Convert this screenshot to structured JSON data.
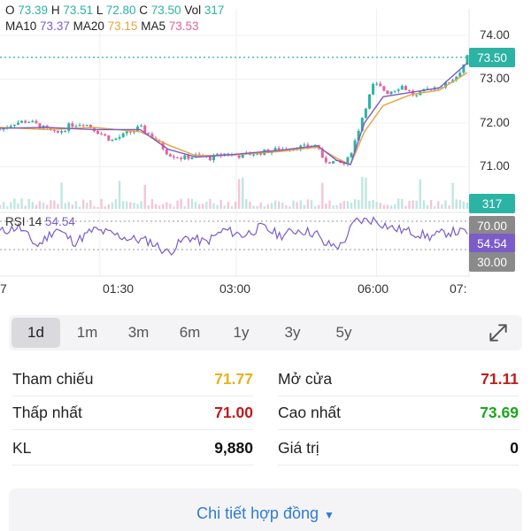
{
  "ohlc": {
    "o_label": "O",
    "o_value": "73.39",
    "h_label": "H",
    "h_value": "73.51",
    "l_label": "L",
    "l_value": "72.80",
    "c_label": "C",
    "c_value": "73.50",
    "vol_label": "Vol",
    "vol_value": "317"
  },
  "ma": {
    "ma10_label": "MA10",
    "ma10_value": "73.37",
    "ma20_label": "MA20",
    "ma20_value": "73.15",
    "ma5_label": "MA5",
    "ma5_value": "73.53"
  },
  "price_axis": [
    "74.00",
    "73.00",
    "72.00",
    "71.00",
    "70.00"
  ],
  "last_price_tag": "73.50",
  "volume_tag": "317",
  "rsi": {
    "label": "RSI 14",
    "value": "54.54",
    "upper": "70.00",
    "lower": "30.00"
  },
  "time_axis": [
    "7",
    "01:30",
    "03:00",
    "06:00",
    "07:"
  ],
  "colors": {
    "teal": "#2bb3a3",
    "purple": "#7b5cc9",
    "orange": "#e8a33a",
    "pink": "#e8609a",
    "up": "#2bb3a3",
    "down": "#e8609a",
    "rsi_band_tag": "#8a8a8a"
  },
  "periods": [
    "1d",
    "1m",
    "3m",
    "6m",
    "1y",
    "3y",
    "5y"
  ],
  "active_period": "1d",
  "stats": {
    "reference_label": "Tham chiếu",
    "reference_value": "71.77",
    "open_label": "Mở cửa",
    "open_value": "71.11",
    "low_label": "Thấp nhất",
    "low_value": "71.00",
    "high_label": "Cao nhất",
    "high_value": "73.69",
    "volume_label": "KL",
    "volume_value": "9,880",
    "value_label": "Giá trị",
    "value_value": "0"
  },
  "detail_button": "Chi tiết hợp đồng",
  "chart_data": {
    "type": "candlestick",
    "price_range": [
      70.0,
      74.0
    ],
    "rsi_range": [
      0,
      100
    ],
    "price_path": [
      [
        0,
        71.85
      ],
      [
        0.03,
        72.0
      ],
      [
        0.06,
        72.05
      ],
      [
        0.09,
        71.9
      ],
      [
        0.12,
        71.75
      ],
      [
        0.15,
        71.95
      ],
      [
        0.18,
        72.0
      ],
      [
        0.21,
        71.8
      ],
      [
        0.24,
        71.6
      ],
      [
        0.27,
        71.75
      ],
      [
        0.3,
        71.9
      ],
      [
        0.33,
        71.65
      ],
      [
        0.36,
        71.3
      ],
      [
        0.39,
        71.2
      ],
      [
        0.42,
        71.25
      ],
      [
        0.45,
        71.2
      ],
      [
        0.48,
        71.3
      ],
      [
        0.51,
        71.25
      ],
      [
        0.54,
        71.3
      ],
      [
        0.57,
        71.35
      ],
      [
        0.6,
        71.4
      ],
      [
        0.63,
        71.45
      ],
      [
        0.66,
        71.45
      ],
      [
        0.68,
        71.5
      ],
      [
        0.69,
        71.15
      ],
      [
        0.72,
        71.1
      ],
      [
        0.74,
        71.05
      ],
      [
        0.76,
        71.6
      ],
      [
        0.78,
        72.3
      ],
      [
        0.8,
        72.9
      ],
      [
        0.83,
        72.7
      ],
      [
        0.86,
        72.85
      ],
      [
        0.89,
        72.6
      ],
      [
        0.92,
        72.8
      ],
      [
        0.95,
        72.85
      ],
      [
        0.98,
        73.1
      ],
      [
        1.0,
        73.5
      ]
    ],
    "ma_orange_path": [
      [
        0,
        71.9
      ],
      [
        0.1,
        71.85
      ],
      [
        0.2,
        71.9
      ],
      [
        0.3,
        71.8
      ],
      [
        0.36,
        71.5
      ],
      [
        0.42,
        71.25
      ],
      [
        0.5,
        71.27
      ],
      [
        0.6,
        71.35
      ],
      [
        0.68,
        71.45
      ],
      [
        0.72,
        71.2
      ],
      [
        0.75,
        71.05
      ],
      [
        0.78,
        71.8
      ],
      [
        0.82,
        72.4
      ],
      [
        0.88,
        72.65
      ],
      [
        0.94,
        72.75
      ],
      [
        1.0,
        73.15
      ]
    ],
    "ma_purple_path": [
      [
        0,
        71.88
      ],
      [
        0.1,
        71.9
      ],
      [
        0.2,
        71.85
      ],
      [
        0.3,
        71.85
      ],
      [
        0.36,
        71.4
      ],
      [
        0.42,
        71.22
      ],
      [
        0.5,
        71.28
      ],
      [
        0.6,
        71.38
      ],
      [
        0.68,
        71.48
      ],
      [
        0.72,
        71.15
      ],
      [
        0.75,
        71.05
      ],
      [
        0.78,
        72.0
      ],
      [
        0.82,
        72.6
      ],
      [
        0.88,
        72.7
      ],
      [
        0.94,
        72.8
      ],
      [
        1.0,
        73.37
      ]
    ],
    "rsi_path": [
      [
        0,
        55
      ],
      [
        0.04,
        62
      ],
      [
        0.08,
        35
      ],
      [
        0.12,
        60
      ],
      [
        0.16,
        40
      ],
      [
        0.2,
        58
      ],
      [
        0.24,
        52
      ],
      [
        0.28,
        45
      ],
      [
        0.32,
        42
      ],
      [
        0.36,
        25
      ],
      [
        0.4,
        48
      ],
      [
        0.44,
        40
      ],
      [
        0.48,
        58
      ],
      [
        0.52,
        50
      ],
      [
        0.56,
        62
      ],
      [
        0.6,
        50
      ],
      [
        0.64,
        58
      ],
      [
        0.68,
        52
      ],
      [
        0.69,
        38
      ],
      [
        0.73,
        35
      ],
      [
        0.76,
        70
      ],
      [
        0.8,
        72
      ],
      [
        0.84,
        60
      ],
      [
        0.88,
        55
      ],
      [
        0.92,
        48
      ],
      [
        0.96,
        55
      ],
      [
        1.0,
        54.54
      ]
    ]
  }
}
